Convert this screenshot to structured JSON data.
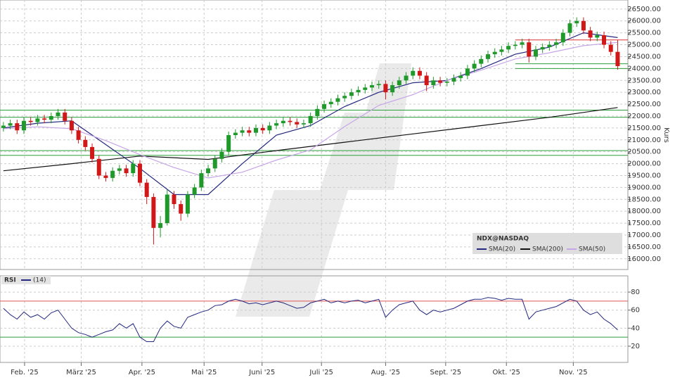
{
  "chart_data": [
    {
      "type": "candlestick",
      "ylabel": "Kurs",
      "legend_title": "NDX@NASDAQ",
      "up_color": "#1f9a2a",
      "down_color": "#d01818",
      "grid": true,
      "xlim": [
        -0.5,
        91.5
      ],
      "xticks": [
        {
          "value": 3.1,
          "label": "Feb. '25"
        },
        {
          "value": 11.4,
          "label": "März '25"
        },
        {
          "value": 20.3,
          "label": "Apr. '25"
        },
        {
          "value": 29.4,
          "label": "Mai '25"
        },
        {
          "value": 37.9,
          "label": "Juni '25"
        },
        {
          "value": 46.6,
          "label": "Juli '25"
        },
        {
          "value": 56,
          "label": "Aug. '25"
        },
        {
          "value": 64.8,
          "label": "Sept. '25"
        },
        {
          "value": 73.7,
          "label": "Okt. '25"
        },
        {
          "value": 83.5,
          "label": "Nov. '25"
        }
      ],
      "ylim": [
        15550,
        26880
      ],
      "yticks": [
        {
          "value": 16000,
          "label": "16000.00"
        },
        {
          "value": 16500,
          "label": "16500.00"
        },
        {
          "value": 17000,
          "label": "17000.00"
        },
        {
          "value": 17500,
          "label": "17500.00"
        },
        {
          "value": 18000,
          "label": "18000.00"
        },
        {
          "value": 18500,
          "label": "18500.00"
        },
        {
          "value": 19000,
          "label": "19000.00"
        },
        {
          "value": 19500,
          "label": "19500.00"
        },
        {
          "value": 20000,
          "label": "20000.00"
        },
        {
          "value": 20500,
          "label": "20500.00"
        },
        {
          "value": 21000,
          "label": "21000.00"
        },
        {
          "value": 21500,
          "label": "21500.00"
        },
        {
          "value": 22000,
          "label": "22000.00"
        },
        {
          "value": 22500,
          "label": "22500.00"
        },
        {
          "value": 23000,
          "label": "23000.00"
        },
        {
          "value": 23500,
          "label": "23500.00"
        },
        {
          "value": 24000,
          "label": "24000.00"
        },
        {
          "value": 24500,
          "label": "24500.00"
        },
        {
          "value": 25000,
          "label": "25000.00"
        },
        {
          "value": 25500,
          "label": "25500.00"
        },
        {
          "value": 26000,
          "label": "26000.00"
        },
        {
          "value": 26500,
          "label": "26500.00"
        }
      ],
      "x": [
        0,
        1,
        2,
        3,
        4,
        5,
        6,
        7,
        8,
        9,
        10,
        11,
        12,
        13,
        14,
        15,
        16,
        17,
        18,
        19,
        20,
        21,
        22,
        23,
        24,
        25,
        26,
        27,
        28,
        29,
        30,
        31,
        32,
        33,
        34,
        35,
        36,
        37,
        38,
        39,
        40,
        41,
        42,
        43,
        44,
        45,
        46,
        47,
        48,
        49,
        50,
        51,
        52,
        53,
        54,
        55,
        56,
        57,
        58,
        59,
        60,
        61,
        62,
        63,
        64,
        65,
        66,
        67,
        68,
        69,
        70,
        71,
        72,
        73,
        74,
        75,
        76,
        77,
        78,
        79,
        80,
        81,
        82,
        83,
        84,
        85,
        86,
        87,
        88,
        89,
        90
      ],
      "open": [
        21500,
        21600,
        21700,
        21400,
        21800,
        21750,
        21900,
        21850,
        22000,
        22150,
        21800,
        21400,
        21000,
        20700,
        20200,
        19500,
        19400,
        19700,
        19800,
        19600,
        20000,
        19200,
        18600,
        17300,
        17500,
        18700,
        18300,
        17900,
        18700,
        19000,
        19600,
        19800,
        20200,
        20500,
        21200,
        21300,
        21400,
        21300,
        21500,
        21400,
        21600,
        21700,
        21800,
        21750,
        21650,
        21700,
        22000,
        22300,
        22500,
        22600,
        22750,
        22850,
        23000,
        23100,
        23200,
        23300,
        23350,
        23000,
        23300,
        23500,
        23700,
        23900,
        23700,
        23300,
        23500,
        23400,
        23450,
        23600,
        23700,
        24000,
        24200,
        24400,
        24600,
        24700,
        24800,
        24950,
        25000,
        25100,
        24500,
        24800,
        24900,
        25000,
        25100,
        25500,
        25900,
        26000,
        25600,
        25300,
        25400,
        25000,
        24700
      ],
      "high": [
        21750,
        21850,
        21850,
        21950,
        21950,
        22050,
        22050,
        22150,
        22300,
        22300,
        21950,
        21550,
        21150,
        20850,
        20350,
        19650,
        19850,
        19950,
        19950,
        20150,
        20150,
        19350,
        18750,
        17800,
        18900,
        18850,
        18450,
        18850,
        19150,
        19750,
        19950,
        20350,
        20650,
        21350,
        21450,
        21550,
        21550,
        21650,
        21650,
        21750,
        21850,
        21950,
        21950,
        21900,
        21850,
        22150,
        22450,
        22650,
        22750,
        22900,
        23000,
        23150,
        23250,
        23350,
        23450,
        23500,
        23500,
        23450,
        23650,
        23850,
        24050,
        24050,
        23850,
        23650,
        23650,
        23600,
        23750,
        23850,
        24150,
        24350,
        24550,
        24750,
        24850,
        24950,
        25100,
        25150,
        25250,
        25250,
        24950,
        25050,
        25150,
        25250,
        25650,
        26050,
        26150,
        26150,
        25750,
        25550,
        25550,
        25150,
        25200
      ],
      "low": [
        21350,
        21450,
        21250,
        21250,
        21600,
        21600,
        21700,
        21700,
        21850,
        21650,
        21250,
        20850,
        20550,
        20050,
        19350,
        19250,
        19250,
        19550,
        19450,
        19450,
        19050,
        18300,
        16600,
        16900,
        17400,
        18100,
        17600,
        17750,
        18550,
        18850,
        19450,
        19650,
        20050,
        20350,
        21050,
        21150,
        21150,
        21150,
        21250,
        21250,
        21450,
        21550,
        21600,
        21500,
        21500,
        21550,
        21850,
        22150,
        22350,
        22450,
        22600,
        22700,
        22850,
        22950,
        23050,
        23150,
        22700,
        22850,
        23150,
        23350,
        23550,
        23550,
        23050,
        23150,
        23250,
        23250,
        23300,
        23450,
        23550,
        23850,
        24050,
        24250,
        24450,
        24550,
        24650,
        24800,
        24850,
        24250,
        24350,
        24650,
        24750,
        24850,
        24950,
        25350,
        25750,
        25450,
        25150,
        25150,
        24850,
        24550,
        23950
      ],
      "close": [
        21600,
        21700,
        21400,
        21800,
        21750,
        21900,
        21850,
        22000,
        22150,
        21800,
        21400,
        21000,
        20700,
        20200,
        19500,
        19400,
        19700,
        19800,
        19600,
        20000,
        19200,
        18600,
        17300,
        17500,
        18700,
        18300,
        17900,
        18700,
        19000,
        19600,
        19800,
        20200,
        20500,
        21200,
        21300,
        21400,
        21300,
        21500,
        21400,
        21600,
        21700,
        21800,
        21750,
        21650,
        21700,
        22000,
        22300,
        22500,
        22600,
        22750,
        22850,
        23000,
        23100,
        23200,
        23300,
        23350,
        23000,
        23300,
        23500,
        23700,
        23900,
        23700,
        23300,
        23500,
        23400,
        23450,
        23600,
        23700,
        24000,
        24200,
        24400,
        24600,
        24700,
        24800,
        24950,
        25000,
        25100,
        24500,
        24800,
        24900,
        25000,
        25100,
        25500,
        25900,
        26000,
        25600,
        25300,
        25400,
        25000,
        24700,
        24100
      ],
      "lines": [
        {
          "name": "SMA(20)",
          "color": "#24287e",
          "x": [
            0,
            5,
            10,
            15,
            20,
            25,
            30,
            35,
            40,
            45,
            50,
            55,
            60,
            65,
            70,
            75,
            80,
            85,
            90
          ],
          "values": [
            21500,
            21700,
            21800,
            20800,
            19800,
            18700,
            18700,
            20000,
            21200,
            21600,
            22400,
            23000,
            23400,
            23500,
            24000,
            24600,
            24900,
            25500,
            25300
          ]
        },
        {
          "name": "SMA(200)",
          "color": "#111111",
          "x": [
            0,
            10,
            20,
            30,
            40,
            50,
            60,
            70,
            80,
            90
          ],
          "values": [
            19700,
            20000,
            20320,
            20180,
            20550,
            20900,
            21250,
            21600,
            21950,
            22360
          ]
        },
        {
          "name": "SMA(50)",
          "color": "#c7a6e6",
          "x": [
            0,
            5,
            10,
            15,
            20,
            25,
            30,
            35,
            40,
            45,
            50,
            55,
            60,
            65,
            70,
            75,
            80,
            85,
            90
          ],
          "values": [
            21470,
            21550,
            21470,
            20970,
            20380,
            19840,
            19400,
            19640,
            20150,
            20580,
            21560,
            22450,
            22900,
            23500,
            23930,
            24400,
            24660,
            24960,
            25100
          ]
        }
      ],
      "levels": [
        {
          "value": 22250,
          "color": "#2e9e3e"
        },
        {
          "value": 21950,
          "color": "#2e9e3e"
        },
        {
          "value": 20550,
          "color": "#2e9e3e"
        },
        {
          "value": 20350,
          "color": "#2e9e3e"
        },
        {
          "value": 25200,
          "color": "#d83030",
          "x_start": 75
        },
        {
          "value": 24200,
          "color": "#2e9e3e",
          "x_start": 75
        },
        {
          "value": 24000,
          "color": "#2e9e3e",
          "x_start": 75
        }
      ]
    },
    {
      "type": "line",
      "title": "RSI",
      "grid": true,
      "ylim": [
        2,
        98
      ],
      "yticks": [
        20,
        40,
        60,
        80
      ],
      "series": [
        {
          "name": "(14)",
          "color": "#24287e",
          "x": [
            0,
            1,
            2,
            3,
            4,
            5,
            6,
            7,
            8,
            9,
            10,
            11,
            12,
            13,
            14,
            15,
            16,
            17,
            18,
            19,
            20,
            21,
            22,
            23,
            24,
            25,
            26,
            27,
            28,
            29,
            30,
            31,
            32,
            33,
            34,
            35,
            36,
            37,
            38,
            39,
            40,
            41,
            42,
            43,
            44,
            45,
            46,
            47,
            48,
            49,
            50,
            51,
            52,
            53,
            54,
            55,
            56,
            57,
            58,
            59,
            60,
            61,
            62,
            63,
            64,
            65,
            66,
            67,
            68,
            69,
            70,
            71,
            72,
            73,
            74,
            75,
            76,
            77,
            78,
            79,
            80,
            81,
            82,
            83,
            84,
            85,
            86,
            87,
            88,
            89,
            90
          ],
          "values": [
            62,
            55,
            50,
            58,
            52,
            55,
            50,
            57,
            60,
            50,
            40,
            35,
            33,
            30,
            33,
            36,
            38,
            45,
            40,
            45,
            30,
            25,
            25,
            40,
            48,
            42,
            40,
            52,
            55,
            58,
            60,
            65,
            66,
            70,
            72,
            70,
            67,
            68,
            66,
            68,
            70,
            68,
            65,
            62,
            63,
            68,
            70,
            72,
            68,
            70,
            68,
            70,
            71,
            68,
            70,
            72,
            52,
            60,
            66,
            68,
            70,
            60,
            55,
            60,
            58,
            60,
            62,
            66,
            70,
            72,
            72,
            74,
            73,
            71,
            73,
            72,
            72,
            50,
            58,
            60,
            62,
            64,
            68,
            72,
            70,
            60,
            55,
            58,
            50,
            45,
            38
          ]
        }
      ],
      "levels": [
        {
          "value": 70,
          "color": "#e05555"
        },
        {
          "value": 30,
          "color": "#2e9e3e"
        }
      ]
    }
  ]
}
